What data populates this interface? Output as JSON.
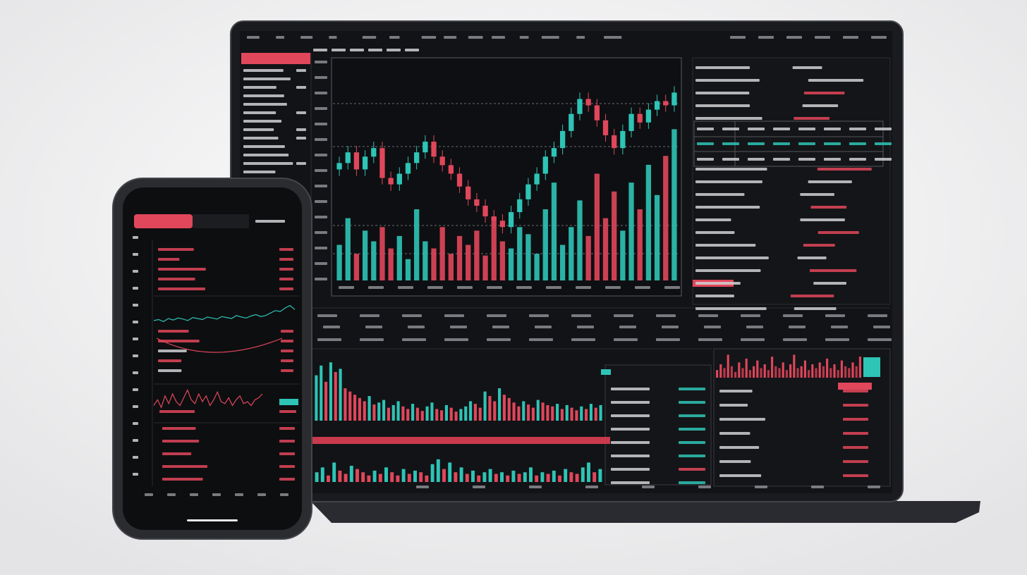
{
  "chart_data": [
    {
      "type": "candlestick",
      "up_color": "#2ec4b6",
      "down_color": "#e0475b",
      "ylim": [
        0,
        100
      ],
      "y2lim": [
        0,
        120
      ],
      "open": [
        52,
        55,
        60,
        52,
        58,
        62,
        48,
        45,
        50,
        55,
        60,
        65,
        58,
        54,
        50,
        44,
        38,
        35,
        30,
        28,
        25,
        32,
        38,
        45,
        50,
        58,
        62,
        70,
        78,
        85,
        82,
        75,
        68,
        62,
        70,
        78,
        74,
        80,
        84,
        82
      ],
      "close": [
        55,
        60,
        52,
        58,
        62,
        48,
        45,
        50,
        55,
        60,
        65,
        58,
        54,
        50,
        44,
        38,
        35,
        30,
        28,
        25,
        32,
        38,
        45,
        50,
        58,
        62,
        70,
        78,
        85,
        82,
        75,
        68,
        62,
        70,
        78,
        74,
        80,
        84,
        82,
        88
      ],
      "high": [
        58,
        63,
        63,
        61,
        65,
        65,
        51,
        53,
        58,
        63,
        68,
        68,
        61,
        57,
        53,
        47,
        41,
        38,
        33,
        31,
        35,
        41,
        48,
        53,
        61,
        65,
        73,
        81,
        88,
        88,
        85,
        78,
        71,
        73,
        81,
        81,
        83,
        87,
        87,
        91
      ],
      "low": [
        49,
        52,
        49,
        49,
        55,
        45,
        42,
        42,
        47,
        52,
        57,
        55,
        51,
        47,
        41,
        35,
        32,
        27,
        25,
        22,
        22,
        29,
        35,
        42,
        47,
        55,
        59,
        67,
        75,
        79,
        72,
        65,
        59,
        59,
        67,
        71,
        71,
        77,
        79,
        79
      ],
      "volume": [
        20,
        35,
        15,
        28,
        22,
        30,
        18,
        25,
        12,
        40,
        22,
        18,
        30,
        15,
        25,
        20,
        28,
        14,
        35,
        22,
        18,
        30,
        26,
        15,
        40,
        55,
        20,
        30,
        45,
        25,
        60,
        35,
        50,
        28,
        55,
        40,
        65,
        48,
        70,
        85
      ]
    },
    {
      "type": "bar",
      "up_color": "#2ec4b6",
      "down_color": "#e0475b",
      "ylim": [
        0,
        100
      ],
      "values": [
        70,
        85,
        60,
        90,
        75,
        80,
        50,
        45,
        40,
        35,
        30,
        38,
        25,
        28,
        32,
        20,
        24,
        30,
        22,
        18,
        26,
        20,
        15,
        22,
        28,
        18,
        16,
        24,
        20,
        14,
        18,
        22,
        30,
        26,
        20,
        45,
        38,
        30,
        50,
        40,
        35,
        28,
        22,
        30,
        25,
        20,
        32,
        28,
        24,
        22,
        26,
        18,
        24,
        20,
        16,
        22,
        18,
        26,
        20,
        24
      ]
    },
    {
      "type": "bar",
      "up_color": "#2ec4b6",
      "down_color": "#e0475b",
      "ylim": [
        0,
        100
      ],
      "values": [
        30,
        45,
        20,
        60,
        35,
        25,
        50,
        40,
        30,
        20,
        35,
        25,
        45,
        30,
        20,
        40,
        25,
        35,
        30,
        20,
        55,
        70,
        40,
        60,
        30,
        45,
        25,
        35,
        20,
        30,
        40,
        25,
        30,
        20,
        35,
        25,
        30,
        45,
        20,
        30,
        25,
        35,
        20,
        40,
        30,
        25,
        45,
        60,
        30,
        40
      ]
    },
    {
      "type": "bar",
      "up_color": "#e0475b",
      "down_color": "#b8394a",
      "ylim": [
        0,
        70
      ],
      "values": [
        20,
        35,
        25,
        60,
        30,
        15,
        40,
        25,
        50,
        20,
        30,
        45,
        25,
        35,
        20,
        55,
        30,
        25,
        40,
        20,
        35,
        60,
        25,
        30,
        45,
        20,
        35,
        25,
        40,
        30,
        50,
        25,
        35,
        20,
        45,
        30,
        25,
        40,
        30,
        55
      ]
    },
    {
      "type": "line",
      "color": "#2ec4b6",
      "ylim": [
        30,
        75
      ],
      "values": [
        40,
        42,
        38,
        44,
        41,
        45,
        43,
        40,
        46,
        44,
        42,
        47,
        45,
        43,
        48,
        46,
        44,
        50,
        47,
        45,
        49,
        52,
        48,
        50,
        55,
        60,
        58,
        65,
        70,
        62
      ]
    },
    {
      "type": "line",
      "color": "#e0475b",
      "ylim": [
        0,
        80
      ],
      "values": [
        30,
        45,
        25,
        55,
        35,
        60,
        40,
        30,
        50,
        70,
        45,
        35,
        60,
        40,
        55,
        30,
        45,
        65,
        40,
        35,
        50,
        30,
        45,
        55,
        35,
        40,
        30,
        45,
        50,
        60
      ]
    }
  ]
}
